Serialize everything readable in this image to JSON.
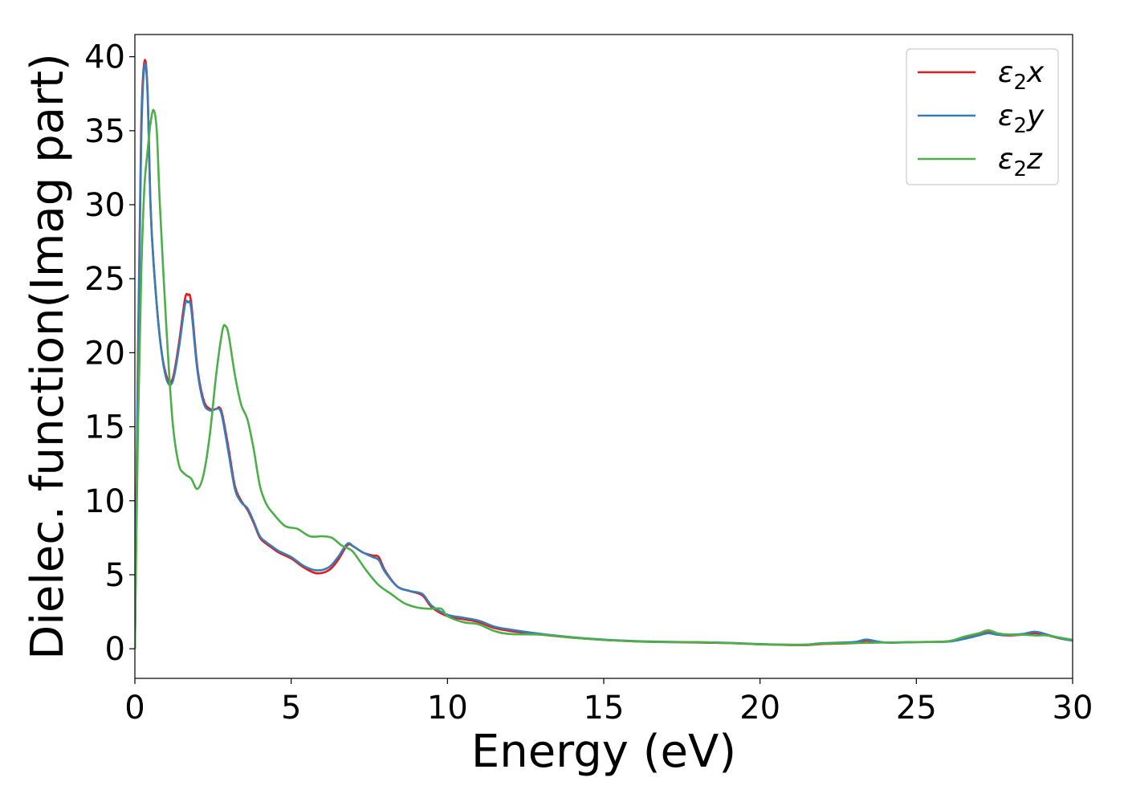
{
  "chart_data": {
    "type": "line",
    "title": "",
    "xlabel": "Energy (eV)",
    "ylabel": "Dielec. function(Imag part)",
    "xlim": [
      0,
      30
    ],
    "ylim": [
      -2,
      41.5
    ],
    "xticks": [
      0,
      5,
      10,
      15,
      20,
      25,
      30
    ],
    "yticks": [
      0,
      5,
      10,
      15,
      20,
      25,
      30,
      35,
      40
    ],
    "grid": false,
    "legend_position": "top-right",
    "series": [
      {
        "name": "ε2x",
        "legend_base": "ε",
        "legend_sub": "2",
        "legend_suffix": "x",
        "color": "#e41a1c",
        "x": [
          0,
          0.1,
          0.2,
          0.3,
          0.4,
          0.5,
          0.6,
          0.8,
          1.0,
          1.2,
          1.4,
          1.6,
          1.7,
          1.8,
          2.0,
          2.2,
          2.4,
          2.6,
          2.7,
          2.8,
          3.0,
          3.2,
          3.4,
          3.6,
          3.8,
          4.0,
          4.2,
          4.4,
          4.6,
          5.0,
          5.4,
          5.8,
          6.2,
          6.5,
          6.8,
          7.0,
          7.3,
          7.6,
          7.8,
          8.0,
          8.4,
          8.8,
          9.2,
          9.5,
          10.0,
          10.5,
          11.0,
          11.5,
          12.0,
          13.0,
          14.0,
          15.0,
          16.0,
          17.0,
          18.0,
          19.0,
          20.0,
          21.0,
          21.5,
          22.0,
          23.0,
          23.4,
          24.0,
          25.0,
          26.0,
          26.5,
          27.0,
          27.3,
          27.6,
          28.0,
          28.4,
          28.8,
          29.2,
          29.6,
          30.0
        ],
        "y": [
          0,
          20,
          35,
          39.6,
          38,
          30,
          26,
          21,
          18.5,
          18.2,
          20.5,
          23.6,
          23.9,
          23.4,
          19,
          16.8,
          16.2,
          16.2,
          16.3,
          15.8,
          13.5,
          11,
          10,
          9.4,
          8.5,
          7.5,
          7.1,
          6.8,
          6.5,
          6.1,
          5.5,
          5.1,
          5.3,
          6.0,
          7.0,
          6.9,
          6.5,
          6.3,
          6.2,
          5.3,
          4.2,
          3.9,
          3.6,
          2.8,
          2.2,
          2.0,
          1.8,
          1.4,
          1.2,
          0.95,
          0.75,
          0.6,
          0.5,
          0.45,
          0.42,
          0.38,
          0.3,
          0.25,
          0.25,
          0.32,
          0.38,
          0.55,
          0.42,
          0.45,
          0.5,
          0.7,
          0.95,
          1.1,
          0.95,
          0.9,
          0.95,
          1.05,
          0.9,
          0.7,
          0.55
        ]
      },
      {
        "name": "ε2y",
        "legend_base": "ε",
        "legend_sub": "2",
        "legend_suffix": "y",
        "color": "#377eb8",
        "x": [
          0,
          0.1,
          0.2,
          0.3,
          0.4,
          0.5,
          0.6,
          0.8,
          1.0,
          1.2,
          1.4,
          1.6,
          1.7,
          1.8,
          2.0,
          2.2,
          2.4,
          2.6,
          2.7,
          2.8,
          3.0,
          3.2,
          3.4,
          3.6,
          3.8,
          4.0,
          4.2,
          4.4,
          4.6,
          5.0,
          5.4,
          5.8,
          6.2,
          6.5,
          6.8,
          7.0,
          7.3,
          7.6,
          7.8,
          8.0,
          8.4,
          8.8,
          9.2,
          9.5,
          10.0,
          10.5,
          11.0,
          11.5,
          12.0,
          13.0,
          14.0,
          15.0,
          16.0,
          17.0,
          18.0,
          19.0,
          20.0,
          21.0,
          21.5,
          22.0,
          23.0,
          23.4,
          24.0,
          25.0,
          26.0,
          26.5,
          27.0,
          27.3,
          27.6,
          28.0,
          28.4,
          28.8,
          29.2,
          29.6,
          30.0
        ],
        "y": [
          0,
          19,
          34,
          39.3,
          37.8,
          30,
          26,
          21,
          18.3,
          18.0,
          20.2,
          23.2,
          23.4,
          23.0,
          18.8,
          16.6,
          16.1,
          16.2,
          16.2,
          15.6,
          13.2,
          10.8,
          9.9,
          9.5,
          8.6,
          7.6,
          7.2,
          6.9,
          6.6,
          6.2,
          5.6,
          5.3,
          5.5,
          6.2,
          7.1,
          6.9,
          6.5,
          6.2,
          6.0,
          5.2,
          4.2,
          3.9,
          3.7,
          2.9,
          2.3,
          2.1,
          1.9,
          1.5,
          1.3,
          1.0,
          0.78,
          0.62,
          0.52,
          0.47,
          0.44,
          0.4,
          0.32,
          0.27,
          0.28,
          0.38,
          0.45,
          0.62,
          0.42,
          0.45,
          0.48,
          0.65,
          0.9,
          1.05,
          0.95,
          0.95,
          1.0,
          1.15,
          0.95,
          0.7,
          0.55
        ]
      },
      {
        "name": "ε2z",
        "legend_base": "ε",
        "legend_sub": "2",
        "legend_suffix": "z",
        "color": "#4daf4a",
        "x": [
          0,
          0.1,
          0.2,
          0.3,
          0.4,
          0.5,
          0.6,
          0.7,
          0.8,
          1.0,
          1.2,
          1.4,
          1.6,
          1.8,
          2.0,
          2.2,
          2.4,
          2.6,
          2.8,
          2.9,
          3.0,
          3.2,
          3.4,
          3.6,
          3.8,
          4.0,
          4.2,
          4.4,
          4.8,
          5.2,
          5.6,
          6.0,
          6.3,
          6.6,
          6.8,
          7.0,
          7.4,
          7.8,
          8.2,
          8.6,
          9.0,
          9.4,
          9.8,
          10.0,
          10.5,
          11.0,
          11.5,
          12.0,
          13.0,
          14.0,
          15.0,
          16.0,
          17.0,
          18.0,
          19.0,
          20.0,
          21.0,
          21.5,
          22.0,
          23.0,
          24.0,
          25.0,
          26.0,
          26.5,
          27.0,
          27.3,
          27.6,
          28.0,
          28.4,
          28.8,
          29.2,
          29.6,
          30.0
        ],
        "y": [
          0,
          15,
          25,
          31,
          33.5,
          35.5,
          36.4,
          35,
          30,
          22,
          15.5,
          12.5,
          11.8,
          11.5,
          10.8,
          11.8,
          14.5,
          18.5,
          21.5,
          21.8,
          21.2,
          18.5,
          16.5,
          15.5,
          13.5,
          11.0,
          9.8,
          9.2,
          8.3,
          8.1,
          7.6,
          7.6,
          7.5,
          7.0,
          6.8,
          6.5,
          5.3,
          4.3,
          3.7,
          3.1,
          2.8,
          2.7,
          2.7,
          2.2,
          1.8,
          1.65,
          1.2,
          1.0,
          0.95,
          0.75,
          0.6,
          0.5,
          0.45,
          0.45,
          0.38,
          0.3,
          0.27,
          0.28,
          0.35,
          0.38,
          0.42,
          0.45,
          0.5,
          0.8,
          1.05,
          1.25,
          1.05,
          0.95,
          0.95,
          0.9,
          0.9,
          0.75,
          0.6
        ]
      }
    ]
  }
}
